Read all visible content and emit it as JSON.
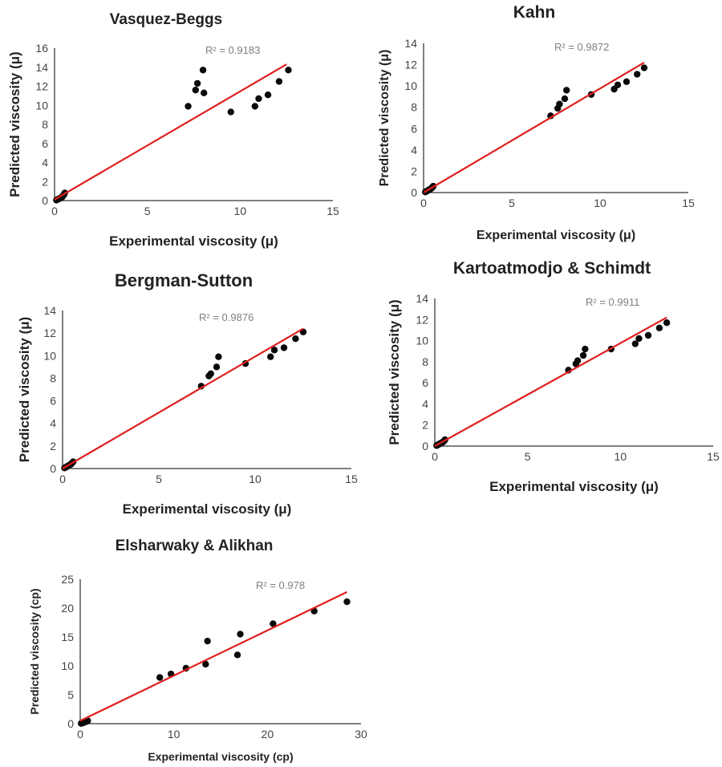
{
  "colors": {
    "trendline": "#e01e1e",
    "point": "#0a0a0a",
    "axis": "#000000",
    "r2_text": "#7f7f7f"
  },
  "chart_data": [
    {
      "type": "scatter",
      "title": "Vasquez-Beggs",
      "xlabel": "Experimental viscosity (μ)",
      "ylabel": "Predicted viscosity (μ)",
      "xlim": [
        0,
        15
      ],
      "ylim": [
        0,
        16
      ],
      "xticks": [
        0,
        5,
        10,
        15
      ],
      "yticks": [
        0,
        2,
        4,
        6,
        8,
        10,
        12,
        14,
        16
      ],
      "r2_label": "R² = 0.9183",
      "grid": false,
      "trendline": {
        "x": [
          0,
          12.5
        ],
        "y": [
          0.1,
          14.3
        ]
      },
      "points": [
        [
          0.1,
          0.05
        ],
        [
          0.15,
          0.1
        ],
        [
          0.2,
          0.15
        ],
        [
          0.25,
          0.2
        ],
        [
          0.3,
          0.25
        ],
        [
          0.35,
          0.3
        ],
        [
          0.4,
          0.35
        ],
        [
          0.45,
          0.5
        ],
        [
          0.5,
          0.6
        ],
        [
          0.55,
          0.8
        ],
        [
          7.2,
          9.9
        ],
        [
          7.6,
          11.6
        ],
        [
          7.7,
          12.3
        ],
        [
          8.0,
          13.7
        ],
        [
          8.05,
          11.3
        ],
        [
          9.5,
          9.3
        ],
        [
          10.8,
          9.9
        ],
        [
          11.0,
          10.7
        ],
        [
          11.5,
          11.1
        ],
        [
          12.1,
          12.5
        ],
        [
          12.6,
          13.7
        ]
      ]
    },
    {
      "type": "scatter",
      "title": "Kahn",
      "xlabel": "Experimental viscosity (μ)",
      "ylabel": "Predicted viscosity (μ)",
      "xlim": [
        0,
        15
      ],
      "ylim": [
        0,
        14
      ],
      "xticks": [
        0,
        5,
        10,
        15
      ],
      "yticks": [
        0,
        2,
        4,
        6,
        8,
        10,
        12,
        14
      ],
      "r2_label": "R² = 0.9872",
      "grid": false,
      "trendline": {
        "x": [
          0,
          12.5
        ],
        "y": [
          0.0,
          12.2
        ]
      },
      "points": [
        [
          0.1,
          0.05
        ],
        [
          0.15,
          0.1
        ],
        [
          0.2,
          0.15
        ],
        [
          0.25,
          0.2
        ],
        [
          0.3,
          0.25
        ],
        [
          0.35,
          0.3
        ],
        [
          0.4,
          0.35
        ],
        [
          0.45,
          0.4
        ],
        [
          0.5,
          0.5
        ],
        [
          0.55,
          0.6
        ],
        [
          7.2,
          7.2
        ],
        [
          7.6,
          7.9
        ],
        [
          7.7,
          8.3
        ],
        [
          8.0,
          8.8
        ],
        [
          8.1,
          9.6
        ],
        [
          9.5,
          9.2
        ],
        [
          10.8,
          9.7
        ],
        [
          11.0,
          10.1
        ],
        [
          11.5,
          10.4
        ],
        [
          12.1,
          11.1
        ],
        [
          12.5,
          11.7
        ]
      ]
    },
    {
      "type": "scatter",
      "title": "Bergman-Sutton",
      "xlabel": "Experimental viscosity (μ)",
      "ylabel": "Predicted viscosity (μ)",
      "xlim": [
        0,
        15
      ],
      "ylim": [
        0,
        14
      ],
      "xticks": [
        0,
        5,
        10,
        15
      ],
      "yticks": [
        0,
        2,
        4,
        6,
        8,
        10,
        12,
        14
      ],
      "r2_label": "R² = 0.9876",
      "grid": false,
      "trendline": {
        "x": [
          0,
          12.5
        ],
        "y": [
          0.0,
          12.4
        ]
      },
      "points": [
        [
          0.1,
          0.05
        ],
        [
          0.15,
          0.1
        ],
        [
          0.2,
          0.15
        ],
        [
          0.25,
          0.2
        ],
        [
          0.3,
          0.25
        ],
        [
          0.35,
          0.3
        ],
        [
          0.4,
          0.35
        ],
        [
          0.45,
          0.4
        ],
        [
          0.5,
          0.5
        ],
        [
          0.55,
          0.6
        ],
        [
          7.2,
          7.3
        ],
        [
          7.6,
          8.2
        ],
        [
          7.7,
          8.4
        ],
        [
          8.0,
          9.0
        ],
        [
          8.1,
          9.9
        ],
        [
          9.5,
          9.3
        ],
        [
          10.8,
          9.9
        ],
        [
          11.0,
          10.5
        ],
        [
          11.5,
          10.7
        ],
        [
          12.1,
          11.5
        ],
        [
          12.5,
          12.1
        ]
      ]
    },
    {
      "type": "scatter",
      "title": "Kartoatmodjo & Schimdt",
      "xlabel": "Experimental viscosity (μ)",
      "ylabel": "Predicted viscosity (μ)",
      "xlim": [
        0,
        15
      ],
      "ylim": [
        0,
        14
      ],
      "xticks": [
        0,
        5,
        10,
        15
      ],
      "yticks": [
        0,
        2,
        4,
        6,
        8,
        10,
        12,
        14
      ],
      "r2_label": "R² = 0.9911",
      "grid": false,
      "trendline": {
        "x": [
          0,
          12.5
        ],
        "y": [
          0.0,
          12.2
        ]
      },
      "points": [
        [
          0.1,
          0.05
        ],
        [
          0.15,
          0.1
        ],
        [
          0.2,
          0.15
        ],
        [
          0.25,
          0.2
        ],
        [
          0.3,
          0.25
        ],
        [
          0.35,
          0.3
        ],
        [
          0.4,
          0.35
        ],
        [
          0.45,
          0.4
        ],
        [
          0.5,
          0.5
        ],
        [
          0.55,
          0.6
        ],
        [
          7.2,
          7.2
        ],
        [
          7.6,
          7.8
        ],
        [
          7.7,
          8.1
        ],
        [
          8.0,
          8.6
        ],
        [
          8.1,
          9.2
        ],
        [
          9.5,
          9.2
        ],
        [
          10.8,
          9.7
        ],
        [
          11.0,
          10.2
        ],
        [
          11.5,
          10.5
        ],
        [
          12.1,
          11.2
        ],
        [
          12.5,
          11.7
        ]
      ]
    },
    {
      "type": "scatter",
      "title": "Elsharwaky & Alikhan",
      "xlabel": "Experimental viscosity (cp)",
      "ylabel": "Predicted viscosity (cp)",
      "xlim": [
        0,
        30
      ],
      "ylim": [
        0,
        25
      ],
      "xticks": [
        0,
        10,
        20,
        30
      ],
      "yticks": [
        0,
        5,
        10,
        15,
        20,
        25
      ],
      "r2_label": "R² = 0.978",
      "grid": false,
      "trendline": {
        "x": [
          0,
          28.5
        ],
        "y": [
          0.5,
          22.8
        ]
      },
      "points": [
        [
          0.1,
          0.05
        ],
        [
          0.2,
          0.1
        ],
        [
          0.3,
          0.15
        ],
        [
          0.4,
          0.2
        ],
        [
          0.5,
          0.3
        ],
        [
          0.6,
          0.35
        ],
        [
          0.7,
          0.4
        ],
        [
          0.8,
          0.5
        ],
        [
          8.5,
          8.0
        ],
        [
          9.7,
          8.6
        ],
        [
          11.3,
          9.6
        ],
        [
          13.4,
          10.3
        ],
        [
          13.6,
          14.3
        ],
        [
          16.8,
          11.9
        ],
        [
          17.1,
          15.5
        ],
        [
          20.6,
          17.3
        ],
        [
          25.0,
          19.5
        ],
        [
          28.5,
          21.1
        ]
      ]
    }
  ]
}
